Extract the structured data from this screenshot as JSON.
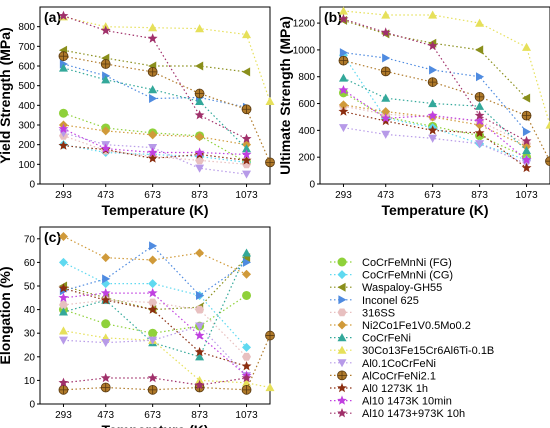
{
  "chart_data": [
    {
      "type": "scatter",
      "panel_label": "(a)",
      "xlabel": "Temperature (K)",
      "ylabel": "Yield Strength (MPa)",
      "x_ticks": [
        "293",
        "473",
        "673",
        "873",
        "1073"
      ],
      "xlim": [
        193,
        1173
      ],
      "ylim": [
        0,
        900
      ],
      "y_ticks": [
        0,
        100,
        200,
        300,
        400,
        500,
        600,
        700,
        800
      ],
      "series": [
        {
          "name": "CoCrFeMnNi (FG)",
          "x": [
            293,
            473,
            673,
            873,
            1073
          ],
          "y": [
            360,
            285,
            260,
            245,
            110
          ]
        },
        {
          "name": "CoCrFeMnNi (CG)",
          "x": [
            293,
            473,
            673,
            873,
            1073
          ],
          "y": [
            200,
            160,
            150,
            140,
            110
          ]
        },
        {
          "name": "Waspaloy-GH55",
          "x": [
            293,
            473,
            673,
            873,
            1073
          ],
          "y": [
            680,
            640,
            600,
            600,
            570
          ]
        },
        {
          "name": "Inconel 625",
          "x": [
            293,
            473,
            673,
            873,
            1073
          ],
          "y": [
            610,
            550,
            435,
            440,
            390
          ]
        },
        {
          "name": "316SS",
          "x": [
            293,
            473,
            673,
            873,
            1073
          ],
          "y": [
            245,
            170,
            140,
            120,
            100
          ]
        },
        {
          "name": "Ni2Co1Fe1V0.5Mo0.2",
          "x": [
            293,
            473,
            673,
            873,
            1073
          ],
          "y": [
            300,
            270,
            250,
            240,
            200
          ]
        },
        {
          "name": "CoCrFeNi",
          "x": [
            293,
            473,
            673,
            873,
            1073
          ],
          "y": [
            590,
            530,
            480,
            420,
            180
          ]
        },
        {
          "name": "30Co13Fe15Cr6Al6Ti-0.1B",
          "x": [
            293,
            473,
            673,
            873,
            1073,
            1173
          ],
          "y": [
            850,
            800,
            795,
            790,
            760,
            420
          ]
        },
        {
          "name": "Al0.1CoCrFeNi",
          "x": [
            293,
            473,
            673,
            873,
            1073
          ],
          "y": [
            260,
            200,
            185,
            80,
            50
          ]
        },
        {
          "name": "AlCoCrFeNi2.1",
          "x": [
            293,
            473,
            673,
            873,
            1073,
            1173
          ],
          "y": [
            650,
            610,
            570,
            460,
            380,
            110
          ]
        },
        {
          "name": "Al0 1273K 1h",
          "x": [
            293,
            473,
            673,
            873,
            1073
          ],
          "y": [
            195,
            175,
            130,
            150,
            120
          ]
        },
        {
          "name": "Al10 1473K 10min",
          "x": [
            293,
            473,
            673,
            873,
            1073
          ],
          "y": [
            280,
            180,
            160,
            160,
            150
          ]
        },
        {
          "name": "Al10 1473+973K 10h",
          "x": [
            293,
            473,
            673,
            873,
            1073
          ],
          "y": [
            855,
            780,
            740,
            350,
            230
          ]
        }
      ]
    },
    {
      "type": "scatter",
      "panel_label": "(b)",
      "xlabel": "Temperature (K)",
      "ylabel": "Ultimate Strength (MPa)",
      "x_ticks": [
        "293",
        "473",
        "673",
        "873",
        "1073"
      ],
      "xlim": [
        193,
        1173
      ],
      "ylim": [
        0,
        1320
      ],
      "y_ticks": [
        0,
        200,
        400,
        600,
        800,
        1000,
        1200
      ],
      "series": [
        {
          "name": "CoCrFeMnNi (FG)",
          "x": [
            293,
            473,
            673,
            873,
            1073
          ],
          "y": [
            680,
            500,
            430,
            360,
            200
          ]
        },
        {
          "name": "CoCrFeMnNi (CG)",
          "x": [
            293,
            473,
            673,
            873,
            1073
          ],
          "y": [
            960,
            490,
            420,
            300,
            180
          ]
        },
        {
          "name": "Waspaloy-GH55",
          "x": [
            293,
            473,
            673,
            873,
            1073
          ],
          "y": [
            1220,
            1120,
            1050,
            1000,
            640
          ]
        },
        {
          "name": "Inconel 625",
          "x": [
            293,
            473,
            673,
            873,
            1073
          ],
          "y": [
            980,
            940,
            850,
            800,
            390
          ]
        },
        {
          "name": "316SS",
          "x": [
            293,
            473,
            673,
            873,
            1073
          ],
          "y": [
            580,
            520,
            500,
            470,
            300
          ]
        },
        {
          "name": "Ni2Co1Fe1V0.5Mo0.2",
          "x": [
            293,
            473,
            673,
            873,
            1073
          ],
          "y": [
            590,
            540,
            500,
            440,
            280
          ]
        },
        {
          "name": "CoCrFeNi",
          "x": [
            293,
            473,
            673,
            873,
            1073
          ],
          "y": [
            790,
            640,
            600,
            580,
            250
          ]
        },
        {
          "name": "30Co13Fe15Cr6Al6Ti-0.1B",
          "x": [
            293,
            473,
            673,
            873,
            1073,
            1173
          ],
          "y": [
            1290,
            1260,
            1260,
            1200,
            1020,
            440
          ]
        },
        {
          "name": "Al0.1CoCrFeNi",
          "x": [
            293,
            473,
            673,
            873,
            1073
          ],
          "y": [
            420,
            370,
            340,
            300,
            150
          ]
        },
        {
          "name": "AlCoCrFeNi2.1",
          "x": [
            293,
            473,
            673,
            873,
            1073,
            1173
          ],
          "y": [
            920,
            840,
            760,
            650,
            510,
            170
          ]
        },
        {
          "name": "Al0 1273K 1h",
          "x": [
            293,
            473,
            673,
            873,
            1073
          ],
          "y": [
            540,
            470,
            400,
            380,
            120
          ]
        },
        {
          "name": "Al10 1473K 10min",
          "x": [
            293,
            473,
            673,
            873,
            1073
          ],
          "y": [
            700,
            490,
            510,
            470,
            180
          ]
        },
        {
          "name": "Al10 1473+973K 10h",
          "x": [
            293,
            473,
            673,
            873,
            1073
          ],
          "y": [
            1230,
            1130,
            1030,
            510,
            320
          ]
        }
      ]
    },
    {
      "type": "scatter",
      "panel_label": "(c)",
      "xlabel": "Temperature (K)",
      "ylabel": "Elongation (%)",
      "x_ticks": [
        "293",
        "473",
        "673",
        "873",
        "1073"
      ],
      "xlim": [
        193,
        1173
      ],
      "ylim": [
        0,
        75
      ],
      "y_ticks": [
        0,
        10,
        20,
        30,
        40,
        50,
        60,
        70
      ],
      "series": [
        {
          "name": "CoCrFeMnNi (FG)",
          "x": [
            293,
            473,
            673,
            873,
            1073
          ],
          "y": [
            40,
            34,
            30,
            33,
            46
          ]
        },
        {
          "name": "CoCrFeMnNi (CG)",
          "x": [
            293,
            473,
            673,
            873,
            1073
          ],
          "y": [
            60,
            51,
            51,
            46,
            24
          ]
        },
        {
          "name": "Waspaloy-GH55",
          "x": [
            293,
            473,
            673,
            873,
            1073
          ],
          "y": [
            50,
            45,
            40,
            41,
            62
          ]
        },
        {
          "name": "Inconel 625",
          "x": [
            293,
            473,
            673,
            873,
            1073
          ],
          "y": [
            48,
            53,
            67,
            46,
            60
          ]
        },
        {
          "name": "316SS",
          "x": [
            293,
            473,
            673,
            873,
            1073
          ],
          "y": [
            42,
            44,
            43,
            40,
            20
          ]
        },
        {
          "name": "Ni2Co1Fe1V0.5Mo0.2",
          "x": [
            293,
            473,
            673,
            873,
            1073
          ],
          "y": [
            71,
            62,
            61,
            64,
            55
          ]
        },
        {
          "name": "CoCrFeNi",
          "x": [
            293,
            473,
            673,
            873,
            1073
          ],
          "y": [
            39,
            44,
            26,
            20,
            64
          ]
        },
        {
          "name": "30Co13Fe15Cr6Al6Ti-0.1B",
          "x": [
            293,
            473,
            673,
            873,
            1073,
            1173
          ],
          "y": [
            31,
            28,
            27,
            10,
            9,
            7
          ]
        },
        {
          "name": "Al0.1CoCrFeNi",
          "x": [
            293,
            473,
            673,
            873,
            1073
          ],
          "y": [
            27,
            26,
            27,
            33,
            12
          ]
        },
        {
          "name": "AlCoCrFeNi2.1",
          "x": [
            293,
            473,
            673,
            873,
            1073,
            1173
          ],
          "y": [
            6,
            7,
            6,
            7,
            6,
            29
          ]
        },
        {
          "name": "Al0 1273K 1h",
          "x": [
            293,
            473,
            673,
            873,
            1073
          ],
          "y": [
            49,
            44,
            40,
            22,
            16
          ]
        },
        {
          "name": "Al10 1473K 10min",
          "x": [
            293,
            473,
            673,
            873,
            1073
          ],
          "y": [
            45,
            47,
            47,
            29,
            12
          ]
        },
        {
          "name": "Al10 1473+973K 10h",
          "x": [
            293,
            473,
            673,
            873,
            1073
          ],
          "y": [
            9,
            11,
            11,
            8,
            11
          ]
        }
      ]
    }
  ],
  "legend": {
    "placement": "bottom-right",
    "entries": [
      {
        "label": "CoCrFeMnNi (FG)",
        "color": "#8fd13a",
        "marker": "circle"
      },
      {
        "label": "CoCrFeMnNi (CG)",
        "color": "#5fd9f0",
        "marker": "diamond"
      },
      {
        "label": "Waspaloy-GH55",
        "color": "#8a8f1c",
        "marker": "triangle-left"
      },
      {
        "label": "Inconel 625",
        "color": "#4f8be0",
        "marker": "triangle-right"
      },
      {
        "label": "316SS",
        "color": "#e8c0c0",
        "marker": "hexagon"
      },
      {
        "label": "Ni2Co1Fe1V0.5Mo0.2",
        "color": "#d09a3a",
        "marker": "diamond"
      },
      {
        "label": "CoCrFeNi",
        "color": "#33a89a",
        "marker": "triangle-up"
      },
      {
        "label": "30Co13Fe15Cr6Al6Ti-0.1B",
        "color": "#e6e05a",
        "marker": "triangle-up"
      },
      {
        "label": "Al0.1CoCrFeNi",
        "color": "#b79ae8",
        "marker": "triangle-down"
      },
      {
        "label": "AlCoCrFeNi2.1",
        "color": "#b07a2a",
        "marker": "circle-cross"
      },
      {
        "label": "Al0 1273K 1h",
        "color": "#8b2e10",
        "marker": "star"
      },
      {
        "label": "Al10 1473K 10min",
        "color": "#c040e0",
        "marker": "star"
      },
      {
        "label": "Al10 1473+973K 10h",
        "color": "#a0306a",
        "marker": "star"
      }
    ]
  }
}
